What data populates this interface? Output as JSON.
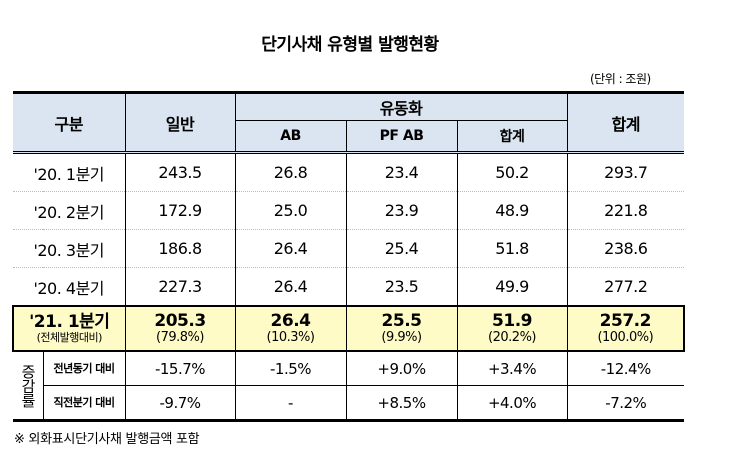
{
  "title": "단기사채 유형별 발행현황",
  "unit": "(단위 : 조원)",
  "headers": {
    "category": "구분",
    "general": "일반",
    "securitization": "유동화",
    "ab": "AB",
    "pfab": "PF AB",
    "sec_total": "합계",
    "total": "합계"
  },
  "rows": [
    {
      "label": "'20. 1분기",
      "general": "243.5",
      "ab": "26.8",
      "pfab": "23.4",
      "sec_total": "50.2",
      "total": "293.7"
    },
    {
      "label": "'20. 2분기",
      "general": "172.9",
      "ab": "25.0",
      "pfab": "23.9",
      "sec_total": "48.9",
      "total": "221.8"
    },
    {
      "label": "'20. 3분기",
      "general": "186.8",
      "ab": "26.4",
      "pfab": "25.4",
      "sec_total": "51.8",
      "total": "238.6"
    },
    {
      "label": "'20. 4분기",
      "general": "227.3",
      "ab": "26.4",
      "pfab": "23.5",
      "sec_total": "49.9",
      "total": "277.2"
    }
  ],
  "highlight": {
    "label": "'21. 1분기",
    "sublabel": "(전체발행대비)",
    "general": "205.3",
    "general_pct": "(79.8%)",
    "ab": "26.4",
    "ab_pct": "(10.3%)",
    "pfab": "25.5",
    "pfab_pct": "(9.9%)",
    "sec_total": "51.9",
    "sec_total_pct": "(20.2%)",
    "total": "257.2",
    "total_pct": "(100.0%)"
  },
  "change": {
    "group_label": "증감률",
    "rows": [
      {
        "label": "전년동기 대비",
        "general": "-15.7%",
        "ab": "-1.5%",
        "pfab": "+9.0%",
        "sec_total": "+3.4%",
        "total": "-12.4%"
      },
      {
        "label": "직전분기 대비",
        "general": "-9.7%",
        "ab": "-",
        "pfab": "+8.5%",
        "sec_total": "+4.0%",
        "total": "-7.2%"
      }
    ]
  },
  "note": "※ 외화표시단기사채 발행금액 포함",
  "colors": {
    "header_bg": "#dbe5f1",
    "highlight_bg": "#fffbc7"
  }
}
